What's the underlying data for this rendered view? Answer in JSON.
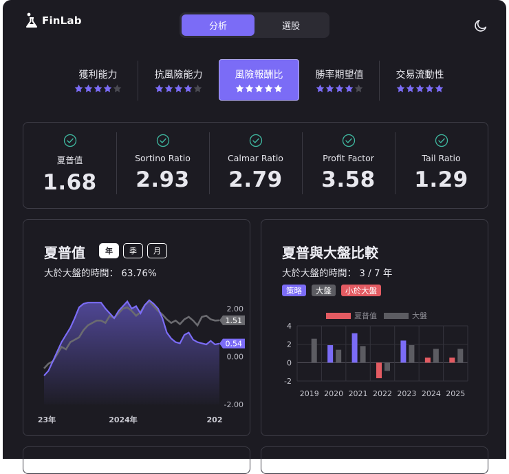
{
  "app": {
    "name": "FinLab"
  },
  "segment": [
    {
      "label": "分析",
      "active": true
    },
    {
      "label": "選股",
      "active": false
    }
  ],
  "icons": {
    "theme_toggle": "moon-icon",
    "metric_status": "check-circle-icon",
    "logo": "flask-icon"
  },
  "categories": [
    {
      "label": "獲利能力",
      "stars": 4,
      "active": false
    },
    {
      "label": "抗風險能力",
      "stars": 4,
      "active": false
    },
    {
      "label": "風險報酬比",
      "stars": 5,
      "active": true
    },
    {
      "label": "勝率期望值",
      "stars": 4,
      "active": false
    },
    {
      "label": "交易流動性",
      "stars": 5,
      "active": false
    }
  ],
  "metrics": [
    {
      "label": "夏普值",
      "value": "1.68"
    },
    {
      "label": "Sortino Ratio",
      "value": "2.93"
    },
    {
      "label": "Calmar Ratio",
      "value": "2.79"
    },
    {
      "label": "Profit Factor",
      "value": "3.58"
    },
    {
      "label": "Tail Ratio",
      "value": "1.29"
    }
  ],
  "colors": {
    "accent": "#7b6cf6",
    "benchmark": "#6b6b70",
    "negative": "#e35b62",
    "background": "#1c1b22"
  },
  "sharpe_card": {
    "title": "夏普值",
    "periods": [
      {
        "label": "年",
        "active": true
      },
      {
        "label": "季",
        "active": false
      },
      {
        "label": "月",
        "active": false
      }
    ],
    "subtitle": "大於大盤的時間： 63.76%"
  },
  "compare_card": {
    "title": "夏普與大盤比較",
    "subtitle": "大於大盤的時間： 3 / 7 年",
    "tags": [
      {
        "label": "策略",
        "color": "#7b6cf6"
      },
      {
        "label": "大盤",
        "color": "#5c5c62"
      },
      {
        "label": "小於大盤",
        "color": "#e35b62"
      }
    ]
  },
  "chart_data": [
    {
      "type": "line",
      "x_ticks": [
        "23年",
        "2024年",
        "202"
      ],
      "y_ticks": [
        "2.00",
        "0.00",
        "-2.00"
      ],
      "ylim": [
        -2,
        2.6
      ],
      "badges": [
        {
          "value": "1.51",
          "series": "benchmark"
        },
        {
          "value": "0.54",
          "series": "strategy"
        }
      ],
      "series": [
        {
          "key": "strategy",
          "values": [
            -0.8,
            -0.6,
            -0.2,
            0.2,
            0.6,
            0.9,
            1.2,
            1.6,
            2.05,
            2.2,
            2.25,
            2.25,
            2.25,
            2.25,
            2.0,
            1.8,
            1.6,
            1.9,
            2.1,
            2.3,
            2.0,
            2.1,
            1.8,
            2.15,
            2.35,
            2.2,
            2.0,
            1.6,
            1.0,
            0.75,
            0.6,
            0.55,
            0.9,
            1.0,
            0.7,
            0.6,
            0.55,
            0.5,
            0.65,
            0.5,
            0.54
          ]
        },
        {
          "key": "benchmark",
          "values": [
            -0.5,
            -0.3,
            -0.2,
            0.1,
            0.4,
            0.3,
            0.6,
            0.7,
            0.8,
            1.1,
            1.3,
            1.4,
            1.5,
            1.5,
            1.4,
            1.7,
            1.6,
            1.8,
            2.0,
            2.05,
            1.9,
            1.7,
            1.85,
            2.15,
            2.3,
            2.1,
            1.9,
            1.75,
            1.55,
            1.4,
            1.5,
            1.35,
            1.55,
            1.65,
            1.5,
            1.3,
            1.65,
            1.7,
            1.55,
            1.5,
            1.51
          ]
        }
      ]
    },
    {
      "type": "bar",
      "legend": [
        "夏普值",
        "大盤"
      ],
      "categories": [
        "2019",
        "2020",
        "2021",
        "2022",
        "2023",
        "2024",
        "2025"
      ],
      "y_ticks": [
        "4",
        "2",
        "0",
        "-2"
      ],
      "ylim": [
        -2,
        4
      ],
      "series": [
        {
          "name": "夏普值",
          "values": [
            0,
            1.9,
            3.2,
            -1.7,
            2.4,
            0.55,
            0.55
          ]
        },
        {
          "name": "大盤",
          "values": [
            2.6,
            1.4,
            1.8,
            -0.9,
            1.9,
            1.5,
            1.5
          ]
        }
      ]
    }
  ]
}
